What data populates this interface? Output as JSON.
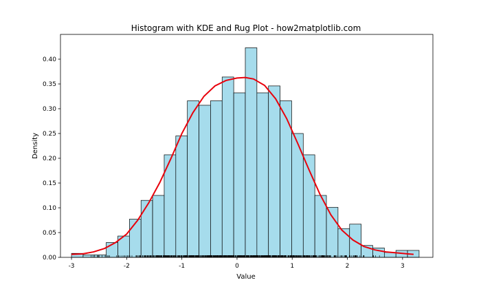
{
  "chart_data": {
    "type": "histogram",
    "title": "Histogram with KDE and Rug Plot - how2matplotlib.com",
    "xlabel": "Value",
    "ylabel": "Density",
    "xlim": [
      -3.2,
      3.55
    ],
    "ylim": [
      0,
      0.45
    ],
    "xticks": [
      -3,
      -2,
      -1,
      0,
      1,
      2,
      3
    ],
    "yticks": [
      0.0,
      0.05,
      0.1,
      0.15,
      0.2,
      0.25,
      0.3,
      0.35,
      0.4
    ],
    "bins": {
      "edges": [
        -3.0,
        -2.79,
        -2.58,
        -2.37,
        -2.16,
        -1.95,
        -1.74,
        -1.53,
        -1.32,
        -1.11,
        -0.9,
        -0.69,
        -0.48,
        -0.27,
        -0.06,
        0.15,
        0.36,
        0.57,
        0.78,
        0.99,
        1.2,
        1.41,
        1.62,
        1.83,
        2.04,
        2.25,
        2.46,
        2.67,
        2.88,
        3.09,
        3.3
      ],
      "density": [
        0.008,
        0.005,
        0.005,
        0.03,
        0.043,
        0.077,
        0.115,
        0.125,
        0.207,
        0.245,
        0.316,
        0.307,
        0.316,
        0.364,
        0.332,
        0.423,
        0.332,
        0.346,
        0.316,
        0.25,
        0.207,
        0.125,
        0.101,
        0.058,
        0.067,
        0.024,
        0.019,
        0.01,
        0.014,
        0.014
      ],
      "fill": "#a6dcec",
      "edge": "#000000"
    },
    "kde": {
      "x": [
        -3.0,
        -2.8,
        -2.6,
        -2.4,
        -2.2,
        -2.0,
        -1.8,
        -1.6,
        -1.4,
        -1.2,
        -1.0,
        -0.8,
        -0.6,
        -0.4,
        -0.2,
        0.0,
        0.15,
        0.3,
        0.5,
        0.7,
        0.9,
        1.1,
        1.3,
        1.5,
        1.7,
        1.9,
        2.1,
        2.3,
        2.5,
        2.7,
        2.9,
        3.1,
        3.2
      ],
      "y": [
        0.006,
        0.007,
        0.011,
        0.018,
        0.03,
        0.047,
        0.075,
        0.11,
        0.151,
        0.199,
        0.25,
        0.292,
        0.325,
        0.346,
        0.357,
        0.362,
        0.363,
        0.36,
        0.347,
        0.32,
        0.28,
        0.23,
        0.178,
        0.128,
        0.086,
        0.055,
        0.035,
        0.022,
        0.015,
        0.011,
        0.009,
        0.007,
        0.006
      ],
      "color": "#e8000b"
    },
    "rug": {
      "range": [
        -3.0,
        3.2
      ],
      "count": 1000,
      "color": "#000000"
    }
  }
}
